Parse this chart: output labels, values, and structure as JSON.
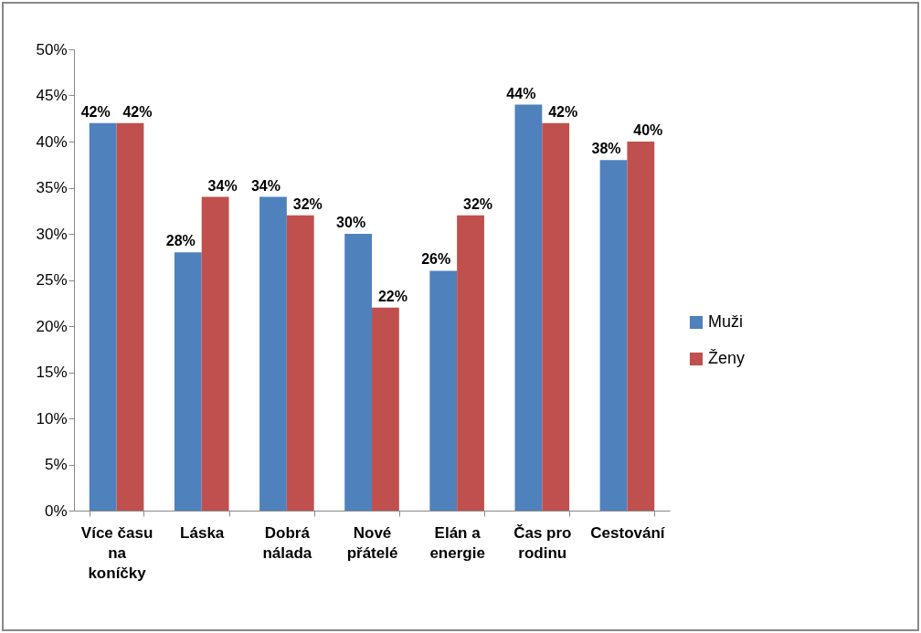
{
  "chart_data": {
    "type": "bar",
    "categories": [
      "Více času na koníčky",
      "Láska",
      "Dobrá nálada",
      "Nové přátelé",
      "Elán a energie",
      "Čas pro rodinu",
      "Cestování"
    ],
    "series": [
      {
        "name": "Muži",
        "color": "#4f81bd",
        "values": [
          42,
          28,
          34,
          30,
          26,
          44,
          38
        ],
        "value_labels": [
          "42%",
          "28%",
          "34%",
          "30%",
          "26%",
          "44%",
          "38%"
        ]
      },
      {
        "name": "Ženy",
        "color": "#c0504d",
        "values": [
          42,
          34,
          32,
          22,
          32,
          42,
          40
        ],
        "value_labels": [
          "42%",
          "34%",
          "32%",
          "22%",
          "32%",
          "42%",
          "40%"
        ]
      }
    ],
    "ylim": [
      0,
      50
    ],
    "yticks": [
      {
        "value": 0,
        "label": "0%"
      },
      {
        "value": 5,
        "label": "5%"
      },
      {
        "value": 10,
        "label": "10%"
      },
      {
        "value": 15,
        "label": "15%"
      },
      {
        "value": 20,
        "label": "20%"
      },
      {
        "value": 25,
        "label": "25%"
      },
      {
        "value": 30,
        "label": "30%"
      },
      {
        "value": 35,
        "label": "35%"
      },
      {
        "value": 40,
        "label": "40%"
      },
      {
        "value": 45,
        "label": "45%"
      },
      {
        "value": 50,
        "label": "50%"
      }
    ],
    "grid": false,
    "legend": "right"
  }
}
